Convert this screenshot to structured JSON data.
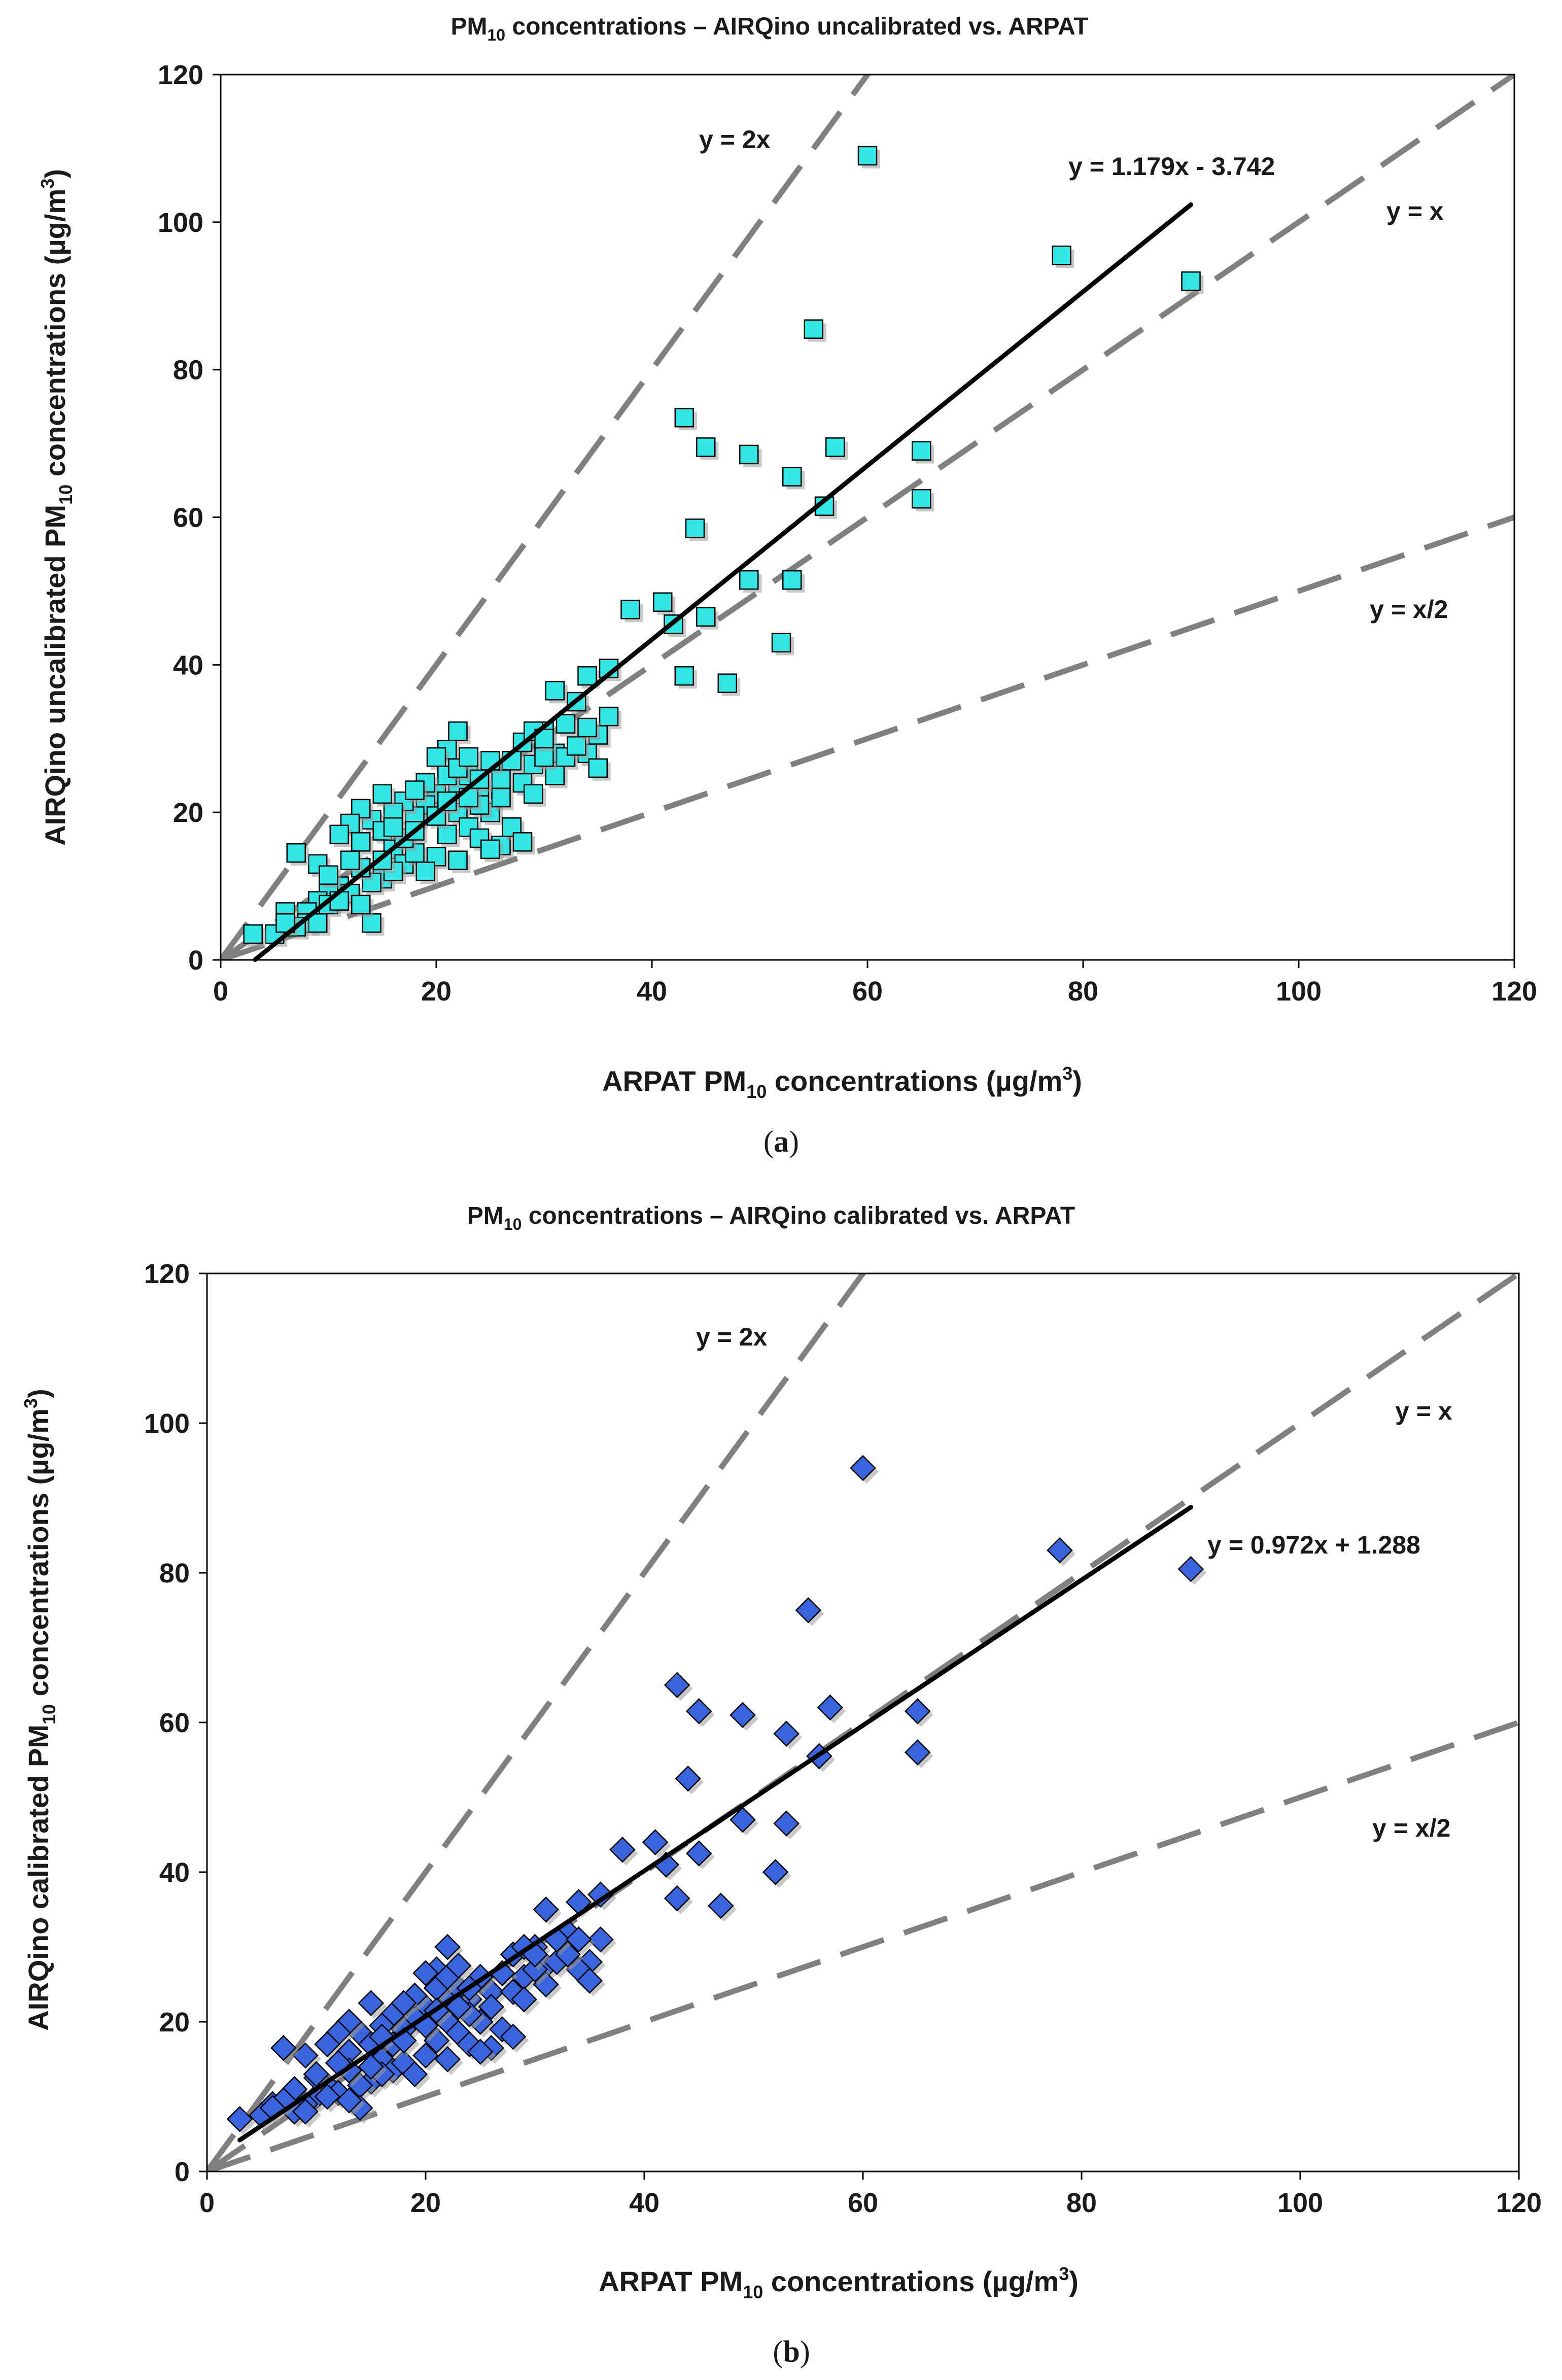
{
  "colors": {
    "ref_line": "#808080",
    "fit_line": "#000000",
    "marker_a": "#33e6e6",
    "marker_b": "#3a64dc",
    "marker_edge": "#000000"
  },
  "chart_data": [
    {
      "panel_label": {
        "open": "(",
        "letter": "a",
        "close": ")"
      },
      "type": "scatter",
      "title": {
        "pre": "PM",
        "sub": "10",
        "post": " concentrations – AIRQino uncalibrated vs. ARPAT"
      },
      "xlabel": {
        "pre": "ARPAT PM",
        "sub": "10",
        "mid": " concentrations (µg/m",
        "sup": "3",
        "post": ")"
      },
      "ylabel": {
        "pre": "AIRQino uncalibrated PM",
        "sub": "10",
        "mid": " concentrations (µg/m",
        "sup": "3",
        "post": ")"
      },
      "xlim": [
        0,
        120
      ],
      "ylim": [
        0,
        120
      ],
      "xticks": [
        0,
        20,
        40,
        60,
        80,
        100,
        120
      ],
      "yticks": [
        0,
        20,
        40,
        60,
        80,
        100,
        120
      ],
      "marker": "square",
      "reference_lines": [
        {
          "label": "y = 2x",
          "slope": 2,
          "intercept": 0
        },
        {
          "label": "y = x",
          "slope": 1,
          "intercept": 0
        },
        {
          "label": "y = x/2",
          "slope": 0.5,
          "intercept": 0
        }
      ],
      "fit": {
        "label": "y = 1.179x - 3.742",
        "slope": 1.179,
        "intercept": -3.742,
        "x_range": [
          3.2,
          90
        ]
      },
      "points": [
        [
          60,
          109
        ],
        [
          78,
          95.5
        ],
        [
          90,
          92
        ],
        [
          55,
          85.5
        ],
        [
          43,
          73.5
        ],
        [
          45,
          69.5
        ],
        [
          49,
          68.5
        ],
        [
          57,
          69.5
        ],
        [
          65,
          69
        ],
        [
          53,
          65.5
        ],
        [
          56,
          61.5
        ],
        [
          65,
          62.5
        ],
        [
          44,
          58.5
        ],
        [
          49,
          51.5
        ],
        [
          53,
          51.5
        ],
        [
          38,
          47.5
        ],
        [
          41,
          48.5
        ],
        [
          42,
          45.5
        ],
        [
          45,
          46.5
        ],
        [
          43,
          38.5
        ],
        [
          47,
          37.5
        ],
        [
          52,
          43
        ],
        [
          31,
          36.5
        ],
        [
          34,
          38.5
        ],
        [
          36,
          39.5
        ],
        [
          33,
          35
        ],
        [
          36,
          33
        ],
        [
          35,
          30.5
        ],
        [
          34,
          28
        ],
        [
          35,
          26
        ],
        [
          31,
          28
        ],
        [
          30,
          31
        ],
        [
          32,
          27.5
        ],
        [
          29,
          26.5
        ],
        [
          31,
          25
        ],
        [
          28,
          29.5
        ],
        [
          27,
          27
        ],
        [
          26,
          24.5
        ],
        [
          25,
          27
        ],
        [
          24,
          23.5
        ],
        [
          22,
          31
        ],
        [
          21,
          28.5
        ],
        [
          20,
          27.5
        ],
        [
          22,
          24
        ],
        [
          23,
          25
        ],
        [
          20,
          22.5
        ],
        [
          19,
          21
        ],
        [
          18,
          19.5
        ],
        [
          17,
          21.5
        ],
        [
          16,
          20
        ],
        [
          15,
          22.5
        ],
        [
          14,
          19
        ],
        [
          13,
          20.5
        ],
        [
          12,
          18.5
        ],
        [
          11,
          17
        ],
        [
          13,
          16
        ],
        [
          15,
          17.5
        ],
        [
          16,
          15
        ],
        [
          17,
          13
        ],
        [
          18,
          14.5
        ],
        [
          15,
          11
        ],
        [
          14,
          10.5
        ],
        [
          13,
          12.5
        ],
        [
          12,
          13.5
        ],
        [
          11,
          10
        ],
        [
          10,
          9
        ],
        [
          9,
          8
        ],
        [
          8,
          6.5
        ],
        [
          9,
          13
        ],
        [
          7,
          14.5
        ],
        [
          6,
          6.5
        ],
        [
          5,
          3.5
        ],
        [
          3,
          3.5
        ],
        [
          8,
          5
        ],
        [
          14,
          5
        ],
        [
          10,
          7.5
        ],
        [
          21,
          25
        ],
        [
          22,
          20
        ],
        [
          23,
          18
        ],
        [
          24,
          16.5
        ],
        [
          25,
          20
        ],
        [
          26,
          22
        ],
        [
          26,
          15.5
        ],
        [
          27,
          18
        ],
        [
          28,
          16
        ],
        [
          25,
          15
        ],
        [
          24,
          21
        ],
        [
          19,
          24
        ],
        [
          18,
          23
        ],
        [
          21,
          17
        ],
        [
          20,
          14
        ],
        [
          19,
          12
        ],
        [
          17,
          16.5
        ],
        [
          22,
          13.5
        ],
        [
          23,
          22
        ],
        [
          24,
          24.5
        ],
        [
          29,
          31
        ],
        [
          30,
          27.5
        ],
        [
          33,
          29
        ],
        [
          32,
          32
        ],
        [
          34,
          31.5
        ],
        [
          28,
          24
        ],
        [
          29,
          22.5
        ],
        [
          30,
          30
        ],
        [
          16,
          12
        ],
        [
          12,
          9
        ],
        [
          11,
          8
        ],
        [
          13,
          7.5
        ],
        [
          10,
          11.5
        ],
        [
          9,
          5
        ],
        [
          7,
          4.5
        ],
        [
          6,
          5
        ],
        [
          15,
          13.5
        ],
        [
          16,
          18
        ],
        [
          18,
          17.5
        ],
        [
          20,
          19.5
        ],
        [
          21,
          21.5
        ],
        [
          22,
          26
        ],
        [
          23,
          27.5
        ]
      ]
    },
    {
      "panel_label": {
        "open": "(",
        "letter": "b",
        "close": ")"
      },
      "type": "scatter",
      "title": {
        "pre": "PM",
        "sub": "10",
        "post": " concentrations – AIRQino calibrated vs. ARPAT"
      },
      "xlabel": {
        "pre": "ARPAT PM",
        "sub": "10",
        "mid": " concentrations (µg/m",
        "sup": "3",
        "post": ")"
      },
      "ylabel": {
        "pre": "AIRQino calibrated PM",
        "sub": "10",
        "mid": " concentrations (µg/m",
        "sup": "3",
        "post": ")"
      },
      "xlim": [
        0,
        120
      ],
      "ylim": [
        0,
        120
      ],
      "xticks": [
        0,
        20,
        40,
        60,
        80,
        100,
        120
      ],
      "yticks": [
        0,
        20,
        40,
        60,
        80,
        100,
        120
      ],
      "marker": "diamond",
      "reference_lines": [
        {
          "label": "y = 2x",
          "slope": 2,
          "intercept": 0
        },
        {
          "label": "y = x",
          "slope": 1,
          "intercept": 0
        },
        {
          "label": "y = x/2",
          "slope": 0.5,
          "intercept": 0
        }
      ],
      "fit": {
        "label": "y = 0.972x + 1.288",
        "slope": 0.972,
        "intercept": 1.288,
        "x_range": [
          3,
          90
        ]
      },
      "points": [
        [
          60,
          94
        ],
        [
          78,
          83
        ],
        [
          90,
          80.5
        ],
        [
          55,
          75
        ],
        [
          43,
          65
        ],
        [
          45,
          61.5
        ],
        [
          49,
          61
        ],
        [
          57,
          62
        ],
        [
          65,
          61.5
        ],
        [
          53,
          58.5
        ],
        [
          56,
          55.5
        ],
        [
          65,
          56
        ],
        [
          44,
          52.5
        ],
        [
          49,
          47
        ],
        [
          53,
          46.5
        ],
        [
          38,
          43
        ],
        [
          41,
          44
        ],
        [
          42,
          41
        ],
        [
          45,
          42.5
        ],
        [
          43,
          36.5
        ],
        [
          47,
          35.5
        ],
        [
          52,
          40
        ],
        [
          31,
          35
        ],
        [
          34,
          36
        ],
        [
          36,
          37
        ],
        [
          33,
          32
        ],
        [
          36,
          31
        ],
        [
          35,
          28
        ],
        [
          34,
          27
        ],
        [
          35,
          25.5
        ],
        [
          31,
          27.5
        ],
        [
          30,
          30
        ],
        [
          32,
          28
        ],
        [
          29,
          26
        ],
        [
          31,
          25
        ],
        [
          28,
          29
        ],
        [
          27,
          26.5
        ],
        [
          26,
          24
        ],
        [
          25,
          26
        ],
        [
          24,
          23
        ],
        [
          22,
          30
        ],
        [
          21,
          27
        ],
        [
          20,
          26.5
        ],
        [
          22,
          23.5
        ],
        [
          23,
          24.5
        ],
        [
          20,
          22
        ],
        [
          19,
          20.5
        ],
        [
          18,
          19
        ],
        [
          17,
          21
        ],
        [
          16,
          19.5
        ],
        [
          15,
          22.5
        ],
        [
          14,
          18.5
        ],
        [
          13,
          20
        ],
        [
          12,
          18.5
        ],
        [
          11,
          17
        ],
        [
          13,
          16
        ],
        [
          15,
          17
        ],
        [
          16,
          15
        ],
        [
          17,
          13.5
        ],
        [
          18,
          14.5
        ],
        [
          15,
          12
        ],
        [
          14,
          11.5
        ],
        [
          13,
          13.5
        ],
        [
          12,
          14.5
        ],
        [
          11,
          11.5
        ],
        [
          10,
          10
        ],
        [
          9,
          9
        ],
        [
          8,
          8
        ],
        [
          9,
          15.5
        ],
        [
          7,
          16.5
        ],
        [
          6,
          9
        ],
        [
          5,
          7.5
        ],
        [
          3,
          7
        ],
        [
          8,
          11
        ],
        [
          14,
          8.5
        ],
        [
          10,
          12.5
        ],
        [
          21,
          24.5
        ],
        [
          22,
          20
        ],
        [
          23,
          18.5
        ],
        [
          24,
          17
        ],
        [
          25,
          20
        ],
        [
          26,
          22
        ],
        [
          26,
          16.5
        ],
        [
          27,
          19
        ],
        [
          28,
          18
        ],
        [
          25,
          16
        ],
        [
          24,
          21
        ],
        [
          19,
          23.5
        ],
        [
          18,
          22.5
        ],
        [
          21,
          17.5
        ],
        [
          20,
          15.5
        ],
        [
          19,
          13
        ],
        [
          17,
          17
        ],
        [
          22,
          15
        ],
        [
          23,
          22
        ],
        [
          24,
          24.5
        ],
        [
          29,
          30
        ],
        [
          30,
          27
        ],
        [
          33,
          29
        ],
        [
          32,
          31
        ],
        [
          34,
          31
        ],
        [
          28,
          24
        ],
        [
          29,
          23
        ],
        [
          30,
          29
        ],
        [
          16,
          13
        ],
        [
          12,
          10.5
        ],
        [
          11,
          10
        ],
        [
          13,
          9.5
        ],
        [
          10,
          13
        ],
        [
          9,
          8
        ],
        [
          7,
          9.5
        ],
        [
          6,
          8.5
        ],
        [
          15,
          14
        ],
        [
          16,
          18
        ],
        [
          18,
          17.5
        ],
        [
          20,
          19.5
        ],
        [
          21,
          21.5
        ],
        [
          22,
          26
        ],
        [
          23,
          27.5
        ]
      ]
    }
  ]
}
